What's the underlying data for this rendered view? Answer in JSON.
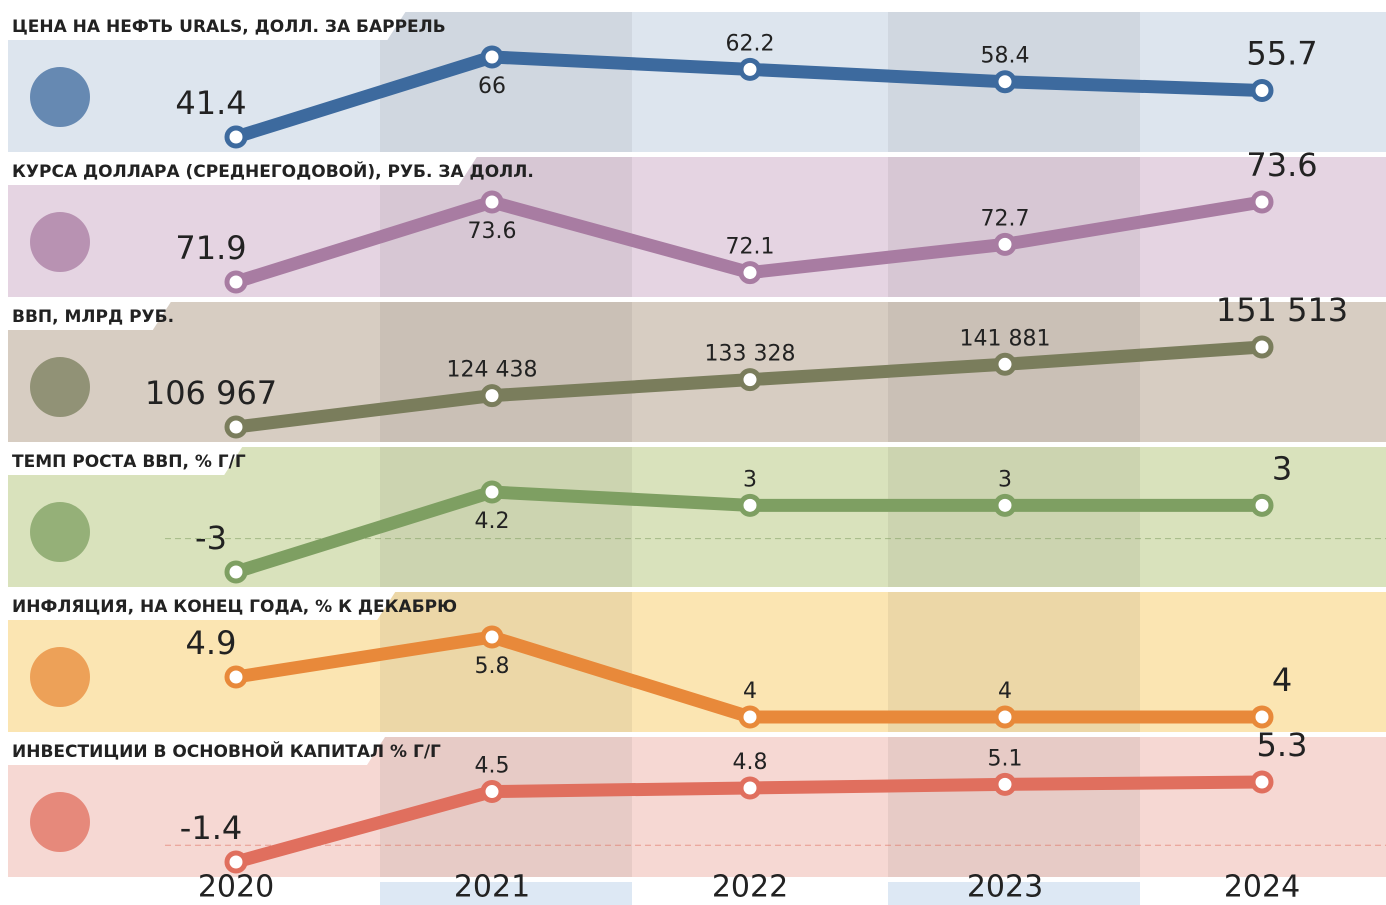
{
  "chart_data": {
    "type": "line",
    "categories": [
      "2020",
      "2021",
      "2022",
      "2023",
      "2024"
    ],
    "series": [
      {
        "name": "ЦЕНА НА НЕФТЬ URALS, ДОЛЛ. ЗА БАРРЕЛЬ",
        "color": "#3d6a9e",
        "values": [
          41.4,
          66,
          62.2,
          58.4,
          55.7
        ]
      },
      {
        "name": "КУРСА ДОЛЛАРА (СРЕДНЕГОДОВОЙ), РУБ. ЗА ДОЛЛ.",
        "color": "#a87ca2",
        "values": [
          71.9,
          73.6,
          72.1,
          72.7,
          73.6
        ]
      },
      {
        "name": "ВВП, МЛРД РУБ.",
        "color": "#7a7d5c",
        "values": [
          106967,
          124438,
          133328,
          141881,
          151513
        ],
        "value_labels": [
          "106 967",
          "124 438",
          "133 328",
          "141 881",
          "151 513"
        ]
      },
      {
        "name": "ТЕМП РОСТА ВВП, % Г/Г",
        "color": "#7e9f62",
        "values": [
          -3,
          4.2,
          3,
          3,
          3
        ]
      },
      {
        "name": "ИНФЛЯЦИЯ, НА КОНЕЦ ГОДА, % К ДЕКАБРЮ",
        "color": "#e8893a",
        "values": [
          4.9,
          5.8,
          4,
          4,
          4
        ]
      },
      {
        "name": "ИНВЕСТИЦИИ В ОСНОВНОЙ КАПИТАЛ % Г/Г",
        "color": "#e06f5e",
        "values": [
          -1.4,
          4.5,
          4.8,
          5.1,
          5.3
        ]
      }
    ]
  }
}
